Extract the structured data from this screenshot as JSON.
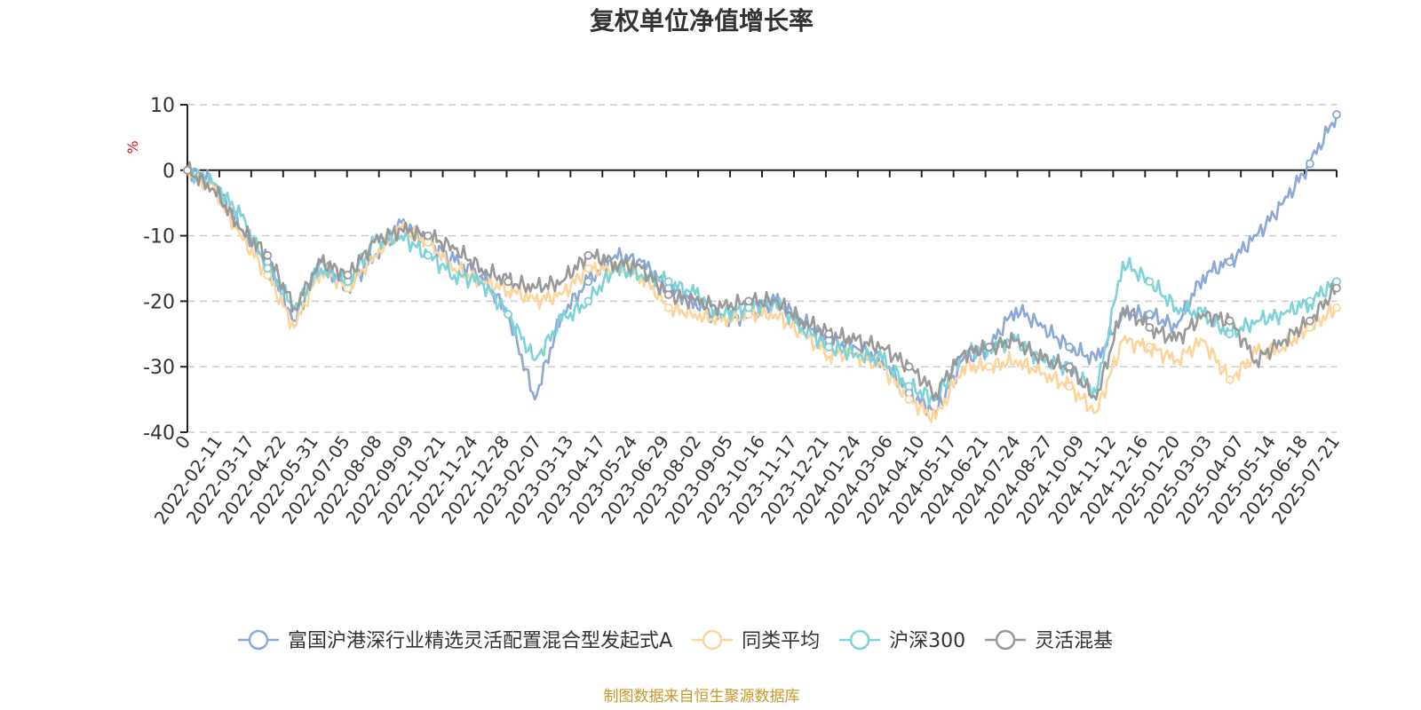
{
  "chart_data": {
    "type": "line",
    "title": "复权单位净值增长率",
    "ylabel": "%",
    "ylim": [
      -40,
      10
    ],
    "yticks": [
      10,
      0,
      -10,
      -20,
      -30,
      -40
    ],
    "grid": true,
    "legend_position": "bottom",
    "x_tick_labels": [
      "0",
      "2022-02-11",
      "2022-03-17",
      "2022-04-22",
      "2022-05-31",
      "2022-07-05",
      "2022-08-08",
      "2022-09-09",
      "2022-10-21",
      "2022-11-24",
      "2022-12-28",
      "2023-02-07",
      "2023-03-13",
      "2023-04-17",
      "2023-05-24",
      "2023-06-29",
      "2023-08-02",
      "2023-09-05",
      "2023-10-16",
      "2023-11-17",
      "2023-12-21",
      "2024-01-24",
      "2024-03-06",
      "2024-04-10",
      "2024-05-17",
      "2024-06-21",
      "2024-07-24",
      "2024-08-27",
      "2024-10-09",
      "2024-11-12",
      "2024-12-16",
      "2025-01-20",
      "2025-03-03",
      "2025-04-07",
      "2025-05-14",
      "2025-06-18",
      "2025-07-21"
    ],
    "series": [
      {
        "name": "富国沪港深行业精选灵活配置混合型发起式A",
        "color": "#8aa9d9",
        "values": [
          0,
          -2,
          -9,
          -14,
          -23,
          -14,
          -18,
          -13,
          -8,
          -11,
          -14,
          -16,
          -22,
          -35,
          -22,
          -17,
          -13,
          -14,
          -18,
          -20,
          -23,
          -22,
          -20,
          -23,
          -26,
          -27,
          -29,
          -34,
          -37,
          -29,
          -27,
          -21,
          -24,
          -27,
          -29,
          -22,
          -22,
          -24,
          -16,
          -14,
          -10,
          -5,
          1,
          8.5
        ]
      },
      {
        "name": "同类平均",
        "color": "#fdd59a",
        "values": [
          0,
          -3,
          -10,
          -16,
          -24,
          -15,
          -18,
          -13,
          -9,
          -11,
          -15,
          -17,
          -18,
          -20,
          -19,
          -15,
          -15,
          -16,
          -21,
          -22,
          -23,
          -22,
          -22,
          -25,
          -28,
          -28,
          -30,
          -35,
          -38,
          -30,
          -30,
          -29,
          -31,
          -33,
          -37,
          -26,
          -27,
          -29,
          -26,
          -32,
          -28,
          -27,
          -24,
          -21
        ]
      },
      {
        "name": "沪深300",
        "color": "#7dd3d8",
        "values": [
          0,
          -2,
          -7,
          -15,
          -21,
          -15,
          -17,
          -11,
          -10,
          -13,
          -16,
          -17,
          -22,
          -29,
          -23,
          -20,
          -15,
          -16,
          -17,
          -19,
          -22,
          -21,
          -20,
          -24,
          -27,
          -28,
          -29,
          -33,
          -35,
          -28,
          -27,
          -26,
          -29,
          -30,
          -34,
          -14,
          -17,
          -21,
          -22,
          -25,
          -23,
          -22,
          -20,
          -17
        ]
      },
      {
        "name": "灵活混基",
        "color": "#999999",
        "values": [
          0,
          -3,
          -9,
          -13,
          -21,
          -14,
          -16,
          -11,
          -9,
          -10,
          -12,
          -15,
          -17,
          -18,
          -17,
          -13,
          -14,
          -15,
          -19,
          -20,
          -21,
          -20,
          -20,
          -23,
          -25,
          -26,
          -27,
          -30,
          -34,
          -28,
          -27,
          -26,
          -29,
          -30,
          -35,
          -21,
          -24,
          -26,
          -22,
          -23,
          -29,
          -26,
          -23,
          -18
        ]
      }
    ],
    "source_note": "制图数据来自恒生聚源数据库"
  }
}
